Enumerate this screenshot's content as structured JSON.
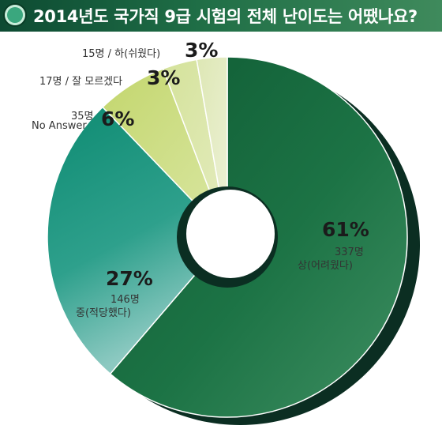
{
  "title": "2014년도 국가직 9급 시험의 전체 난이도는 어땠나요?",
  "colors": {
    "title_bar": "#1f6e46",
    "slice_hard": "#17693f",
    "slice_medium": "#16907c",
    "slice_noanswer": "#cbdc7c",
    "slice_unknown": "#dbe6a6",
    "slice_easy": "#e3ebc2",
    "shadow": "#0b2e22"
  },
  "chart_data": {
    "type": "pie",
    "style": "donut",
    "title": "2014년도 국가직 9급 시험의 전체 난이도는 어땠나요?",
    "slices": [
      {
        "label": "상(어려웠다)",
        "count_label": "337명",
        "percent_label": "61%",
        "value": 337,
        "percent": 61
      },
      {
        "label": "중(적당했다)",
        "count_label": "146명",
        "percent_label": "27%",
        "value": 146,
        "percent": 27
      },
      {
        "label": "No Answer",
        "count_label": "35명",
        "percent_label": "6%",
        "value": 35,
        "percent": 6
      },
      {
        "label": "잘 모르겠다",
        "count_label": "17명",
        "percent_label": "3%",
        "value": 17,
        "percent": 3
      },
      {
        "label": "하(쉬웠다)",
        "count_label": "15명",
        "percent_label": "3%",
        "value": 15,
        "percent": 3
      }
    ],
    "legend": "none"
  }
}
